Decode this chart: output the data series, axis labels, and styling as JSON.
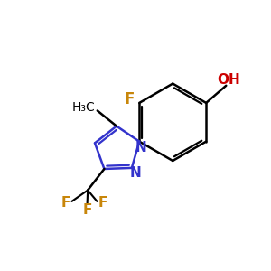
{
  "background_color": "#FFFFFF",
  "bond_color": "#000000",
  "pyrazole_color": "#3333CC",
  "F_label_color": "#C8860A",
  "OH_color": "#CC0000",
  "bond_width": 1.8,
  "figsize": [
    3.0,
    3.0
  ],
  "dpi": 100,
  "xlim": [
    0,
    10
  ],
  "ylim": [
    0,
    10
  ]
}
